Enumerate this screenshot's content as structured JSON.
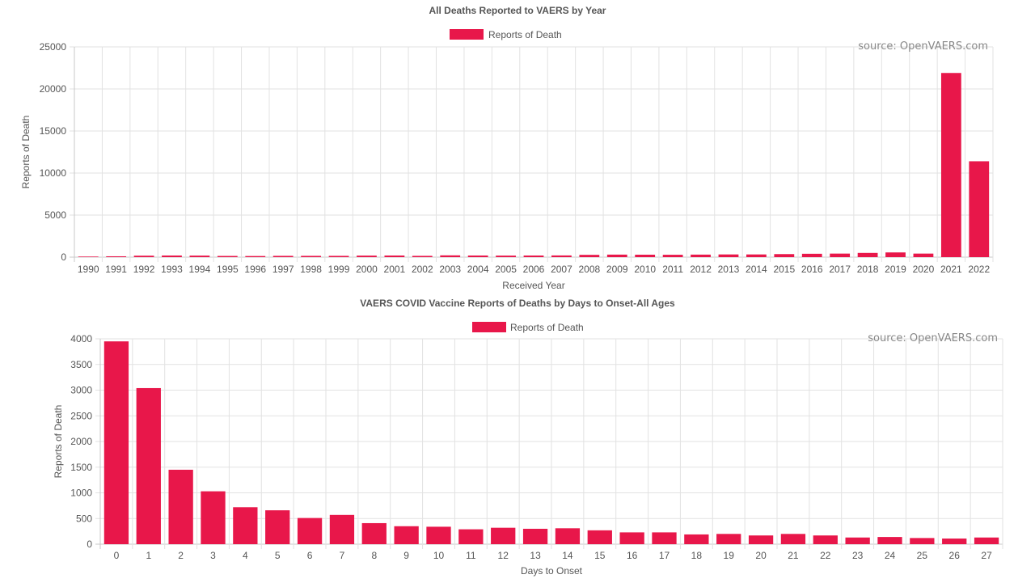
{
  "chart_data": [
    {
      "type": "bar",
      "title": "All Deaths Reported to VAERS by Year",
      "legend": "Reports of Death",
      "legend_position": "top",
      "source": "source: OpenVAERS.com",
      "xlabel": "Received Year",
      "ylabel": "Reports of Death",
      "ylim": [
        0,
        25000
      ],
      "yticks": [
        "0",
        "5000",
        "10000",
        "15000",
        "20000",
        "25000"
      ],
      "grid": true,
      "color": "#e8174a",
      "categories": [
        "1990",
        "1991",
        "1992",
        "1993",
        "1994",
        "1995",
        "1996",
        "1997",
        "1998",
        "1999",
        "2000",
        "2001",
        "2002",
        "2003",
        "2004",
        "2005",
        "2006",
        "2007",
        "2008",
        "2009",
        "2010",
        "2011",
        "2012",
        "2013",
        "2014",
        "2015",
        "2016",
        "2017",
        "2018",
        "2019",
        "2020",
        "2021",
        "2022"
      ],
      "series": [
        {
          "name": "Reports of Death",
          "values": [
            70,
            100,
            170,
            190,
            180,
            140,
            130,
            150,
            150,
            150,
            180,
            190,
            150,
            210,
            190,
            180,
            190,
            200,
            270,
            300,
            290,
            280,
            300,
            320,
            320,
            360,
            400,
            420,
            500,
            560,
            420,
            21900,
            11400
          ]
        }
      ]
    },
    {
      "type": "bar",
      "title": "VAERS COVID Vaccine Reports of Deaths by Days to Onset-All Ages",
      "legend": "Reports of Death",
      "legend_position": "top",
      "source": "source: OpenVAERS.com",
      "xlabel": "Days to Onset",
      "ylabel": "Reports of Death",
      "ylim": [
        0,
        4000
      ],
      "yticks": [
        "0",
        "500",
        "1000",
        "1500",
        "2000",
        "2500",
        "3000",
        "3500",
        "4000"
      ],
      "grid": true,
      "color": "#e8174a",
      "categories": [
        "0",
        "1",
        "2",
        "3",
        "4",
        "5",
        "6",
        "7",
        "8",
        "9",
        "10",
        "11",
        "12",
        "13",
        "14",
        "15",
        "16",
        "17",
        "18",
        "19",
        "20",
        "21",
        "22",
        "23",
        "24",
        "25",
        "26",
        "27"
      ],
      "series": [
        {
          "name": "Reports of Death",
          "values": [
            3950,
            3040,
            1450,
            1030,
            720,
            660,
            510,
            570,
            410,
            350,
            340,
            290,
            320,
            300,
            310,
            270,
            230,
            230,
            190,
            200,
            170,
            200,
            170,
            130,
            140,
            120,
            110,
            130
          ]
        }
      ]
    }
  ]
}
